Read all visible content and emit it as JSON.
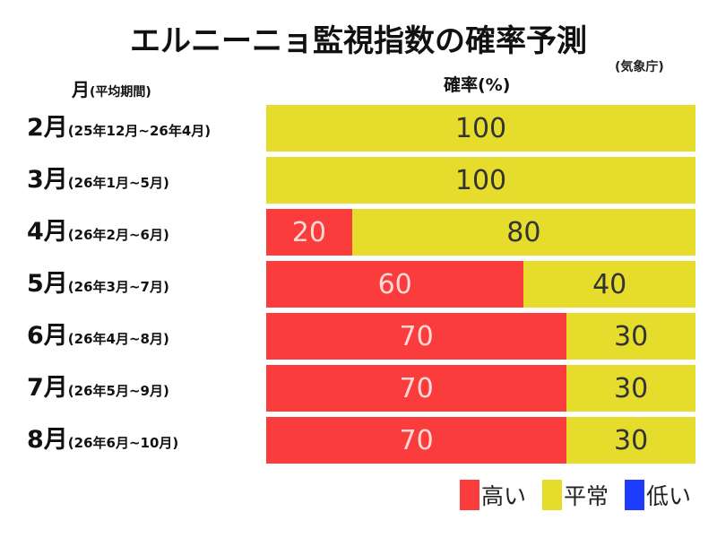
{
  "chart_data": {
    "type": "bar",
    "stacked": true,
    "orientation": "horizontal",
    "title": "エルニーニョ監視指数の確率予測",
    "source": "(気象庁)",
    "ylabel_main": "月",
    "ylabel_sub": "(平均期間)",
    "xlabel": "確率(%)",
    "xlim": [
      0,
      100
    ],
    "categories": [
      {
        "month": "2月",
        "period": "(25年12月~26年4月)"
      },
      {
        "month": "3月",
        "period": "(26年1月~5月)"
      },
      {
        "month": "4月",
        "period": "(26年2月~6月)"
      },
      {
        "month": "5月",
        "period": "(26年3月~7月)"
      },
      {
        "month": "6月",
        "period": "(26年4月~8月)"
      },
      {
        "month": "7月",
        "period": "(26年5月~9月)"
      },
      {
        "month": "8月",
        "period": "(26年6月~10月)"
      }
    ],
    "series": [
      {
        "name": "高い",
        "color": "#fb3c3c",
        "label_color": "#ffd9d9",
        "values": [
          0,
          0,
          20,
          60,
          70,
          70,
          70
        ]
      },
      {
        "name": "平常",
        "color": "#e6dc2c",
        "label_color": "#333333",
        "values": [
          100,
          100,
          80,
          40,
          30,
          30,
          30
        ]
      },
      {
        "name": "低い",
        "color": "#1e3cff",
        "label_color": "#ffffff",
        "values": [
          0,
          0,
          0,
          0,
          0,
          0,
          0
        ]
      }
    ],
    "legend": "bottom-right"
  }
}
